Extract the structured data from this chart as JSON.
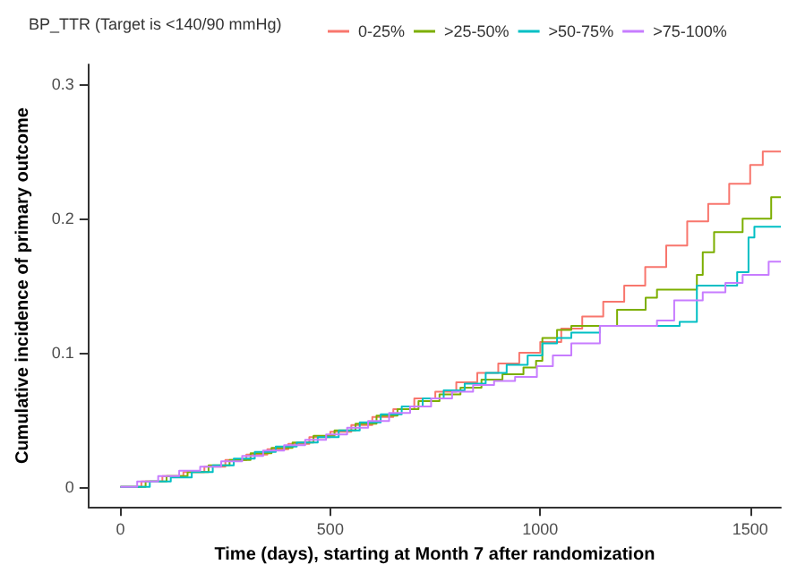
{
  "chart_data": {
    "type": "step",
    "xlabel": "Time (days), starting at Month 7 after randomization",
    "ylabel": "Cumulative incidence of primary outcome",
    "legend_title": "BP_TTR (Target is <140/90 mmHg)",
    "legend": "top",
    "xlim": [
      -76,
      1573
    ],
    "xticks": [
      0,
      500,
      1000,
      1500
    ],
    "ylim": [
      -0.015,
      0.315
    ],
    "yticks": [
      0,
      0.1,
      0.2,
      0.3
    ],
    "series": [
      {
        "name": "0-25%",
        "color": "#f8766d",
        "x": [
          0,
          50,
          100,
          150,
          200,
          250,
          300,
          350,
          400,
          450,
          500,
          550,
          600,
          650,
          700,
          750,
          800,
          850,
          900,
          950,
          1000,
          1050,
          1100,
          1150,
          1200,
          1250,
          1300,
          1350,
          1400,
          1450,
          1500,
          1530,
          1573
        ],
        "values": [
          0,
          0.004,
          0.008,
          0.011,
          0.015,
          0.02,
          0.024,
          0.028,
          0.032,
          0.037,
          0.041,
          0.046,
          0.052,
          0.058,
          0.066,
          0.071,
          0.078,
          0.085,
          0.092,
          0.1,
          0.108,
          0.118,
          0.127,
          0.138,
          0.15,
          0.164,
          0.18,
          0.198,
          0.211,
          0.226,
          0.24,
          0.25,
          0.25
        ]
      },
      {
        "name": ">25-50%",
        "color": "#7cae00",
        "x": [
          0,
          60,
          110,
          160,
          210,
          260,
          310,
          360,
          410,
          460,
          510,
          560,
          610,
          660,
          710,
          760,
          810,
          860,
          910,
          960,
          990,
          1005,
          1040,
          1074,
          1155,
          1183,
          1251,
          1278,
          1373,
          1387,
          1414,
          1482,
          1550,
          1573
        ],
        "values": [
          0,
          0.004,
          0.008,
          0.011,
          0.016,
          0.02,
          0.025,
          0.029,
          0.033,
          0.038,
          0.042,
          0.047,
          0.053,
          0.058,
          0.064,
          0.069,
          0.074,
          0.08,
          0.084,
          0.089,
          0.094,
          0.111,
          0.117,
          0.12,
          0.12,
          0.132,
          0.141,
          0.147,
          0.158,
          0.175,
          0.19,
          0.2,
          0.216,
          0.216
        ]
      },
      {
        "name": ">50-75%",
        "color": "#00bfc4",
        "x": [
          0,
          70,
          120,
          170,
          220,
          270,
          320,
          370,
          420,
          470,
          520,
          570,
          620,
          670,
          720,
          770,
          820,
          870,
          920,
          970,
          1005,
          1040,
          1074,
          1142,
          1332,
          1373,
          1469,
          1496,
          1510,
          1573
        ],
        "values": [
          0,
          0.004,
          0.007,
          0.011,
          0.016,
          0.021,
          0.026,
          0.03,
          0.033,
          0.037,
          0.042,
          0.048,
          0.054,
          0.06,
          0.066,
          0.072,
          0.077,
          0.085,
          0.091,
          0.098,
          0.107,
          0.111,
          0.115,
          0.12,
          0.123,
          0.15,
          0.16,
          0.186,
          0.194,
          0.194
        ]
      },
      {
        "name": ">75-100%",
        "color": "#c77cff",
        "x": [
          0,
          40,
          90,
          140,
          190,
          240,
          290,
          340,
          390,
          440,
          490,
          540,
          590,
          640,
          690,
          740,
          790,
          840,
          890,
          940,
          992,
          1030,
          1074,
          1142,
          1278,
          1319,
          1387,
          1441,
          1482,
          1544,
          1573
        ],
        "values": [
          0,
          0.004,
          0.008,
          0.012,
          0.015,
          0.019,
          0.023,
          0.027,
          0.031,
          0.035,
          0.039,
          0.044,
          0.049,
          0.055,
          0.06,
          0.066,
          0.071,
          0.076,
          0.079,
          0.082,
          0.09,
          0.098,
          0.107,
          0.12,
          0.124,
          0.139,
          0.145,
          0.152,
          0.158,
          0.168,
          0.168
        ]
      }
    ]
  }
}
